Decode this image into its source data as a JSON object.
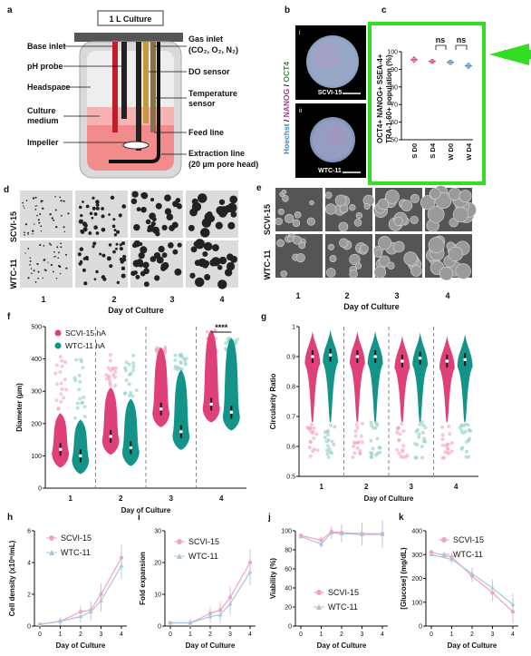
{
  "panel_labels": {
    "a": "a",
    "b": "b",
    "c": "c",
    "d": "d",
    "e": "e",
    "f": "f",
    "g": "g",
    "h": "h",
    "i": "i",
    "j": "j",
    "k": "k"
  },
  "panel_a": {
    "title": "1 L Culture",
    "left_labels": [
      "Base inlet",
      "pH probe",
      "Headspace",
      "Culture",
      "medium",
      "Impeller"
    ],
    "right_labels": [
      "Gas inlet",
      "(CO₂, O₂, N₂)",
      "DO sensor",
      "Temperature",
      "sensor",
      "Feed line",
      "Extraction line",
      "(20 µm pore head)"
    ]
  },
  "panel_b": {
    "stain_label_hoechst": "Hoechst",
    "stain_label_nanog": "NANOG",
    "stain_label_oct4": "OCT4",
    "sep": " / ",
    "top_roman": "i",
    "bottom_roman": "ii",
    "top_line": "SCVI-15",
    "bottom_line": "WTC-11"
  },
  "panel_c": {
    "ylabel_1": "OCT4+ NANOG+ SSEA-4+",
    "ylabel_2": "TRA-1-60+ population (%)",
    "ns1": "ns",
    "ns2": "ns",
    "colors": {
      "highlight": "#33dd22",
      "scvi": "#e0407a",
      "wtc": "#5a8fb8"
    }
  },
  "chart_data": [
    {
      "type": "scatter",
      "panel": "c",
      "categories": [
        "S D0",
        "S D4",
        "W D0",
        "W D4"
      ],
      "values": [
        95.5,
        94.5,
        94,
        92
      ],
      "errors": [
        2,
        1,
        1.5,
        2
      ],
      "ylim": [
        50,
        100
      ],
      "yticks": [
        "50",
        "60",
        "70",
        "80",
        "90",
        "100"
      ]
    },
    {
      "type": "line",
      "panel": "h",
      "x": [
        0,
        1,
        2,
        2.5,
        3,
        4
      ],
      "xticks": [
        "0",
        "1",
        "2",
        "3",
        "4"
      ],
      "series": [
        {
          "name": "SCVI-15",
          "values": [
            0.1,
            0.3,
            0.9,
            1.0,
            2.0,
            4.3
          ]
        },
        {
          "name": "WTC-11",
          "values": [
            0.1,
            0.3,
            0.6,
            0.9,
            1.6,
            3.8
          ]
        }
      ],
      "ylim": [
        0,
        6
      ],
      "yticks": [
        "0",
        "2",
        "4",
        "6"
      ],
      "xlabel": "Day of Culture",
      "ylabel": "Cell density (x10⁶/mL)"
    },
    {
      "type": "line",
      "panel": "i",
      "x": [
        0,
        1,
        2,
        2.5,
        3,
        4
      ],
      "xticks": [
        "0",
        "1",
        "2",
        "3",
        "4"
      ],
      "series": [
        {
          "name": "SCVI-15",
          "values": [
            1,
            1,
            4,
            5,
            9,
            20
          ]
        },
        {
          "name": "WTC-11",
          "values": [
            1,
            1,
            3,
            3.5,
            7,
            17
          ]
        }
      ],
      "ylim": [
        0,
        30
      ],
      "yticks": [
        "0",
        "10",
        "20",
        "30"
      ],
      "xlabel": "Day of Culture",
      "ylabel": "Fold expansion"
    },
    {
      "type": "line",
      "panel": "j",
      "x": [
        0,
        1,
        1.5,
        2,
        3,
        4
      ],
      "xticks": [
        "0",
        "1",
        "2",
        "3",
        "4"
      ],
      "series": [
        {
          "name": "SCVI-15",
          "values": [
            95,
            90,
            99,
            98,
            97,
            97
          ]
        },
        {
          "name": "WTC-11",
          "values": [
            94,
            86,
            98,
            97,
            96,
            96
          ]
        }
      ],
      "ylim": [
        0,
        100
      ],
      "yticks": [
        "0",
        "20",
        "40",
        "60",
        "80",
        "100"
      ],
      "xlabel": "Day of Culture",
      "ylabel": "Viability (%)"
    },
    {
      "type": "line",
      "panel": "k",
      "x": [
        0,
        1,
        2,
        3,
        4
      ],
      "xticks": [
        "0",
        "1",
        "2",
        "3",
        "4"
      ],
      "series": [
        {
          "name": "SCVI-15",
          "values": [
            310,
            290,
            210,
            140,
            60
          ]
        },
        {
          "name": "WTC-11",
          "values": [
            300,
            280,
            220,
            160,
            90
          ]
        }
      ],
      "ylim": [
        0,
        400
      ],
      "yticks": [
        "0",
        "100",
        "200",
        "300",
        "400"
      ],
      "xlabel": "Day of Culture",
      "ylabel": "[Glucose] (mg/dL)"
    },
    {
      "type": "violin",
      "panel": "f",
      "categories": [
        "1",
        "2",
        "3",
        "4"
      ],
      "series": [
        {
          "name": "SCVI-15 hA",
          "medians": [
            120,
            160,
            245,
            260
          ]
        },
        {
          "name": "WTC-11 hA",
          "medians": [
            100,
            125,
            175,
            235
          ]
        }
      ],
      "ylim": [
        0,
        500
      ],
      "yticks": [
        "0",
        "100",
        "200",
        "300",
        "400",
        "500"
      ],
      "xlabel": "Day of Culture",
      "ylabel": "Diameter (µm)",
      "annotation": "****"
    },
    {
      "type": "violin",
      "panel": "g",
      "categories": [
        "1",
        "2",
        "3",
        "4"
      ],
      "series": [
        {
          "name": "SCVI-15",
          "medians": [
            0.9,
            0.9,
            0.885,
            0.885
          ]
        },
        {
          "name": "WTC-11",
          "medians": [
            0.905,
            0.9,
            0.895,
            0.89
          ]
        }
      ],
      "ylim": [
        0.5,
        1.0
      ],
      "yticks": [
        "0.5",
        "0.6",
        "0.7",
        "0.8",
        "0.9",
        "1"
      ],
      "xlabel": "Day of Culture",
      "ylabel": "Circularity Ratio"
    }
  ],
  "grid_d": {
    "rows": [
      "SCVI-15",
      "WTC-11"
    ],
    "cols": [
      "1",
      "2",
      "3",
      "4"
    ],
    "xlabel": "Day of Culture"
  },
  "grid_e": {
    "rows": [
      "SCVI-15",
      "WTC-11"
    ],
    "cols": [
      "1",
      "2",
      "3",
      "4"
    ],
    "xlabel": "Day of Culture"
  }
}
